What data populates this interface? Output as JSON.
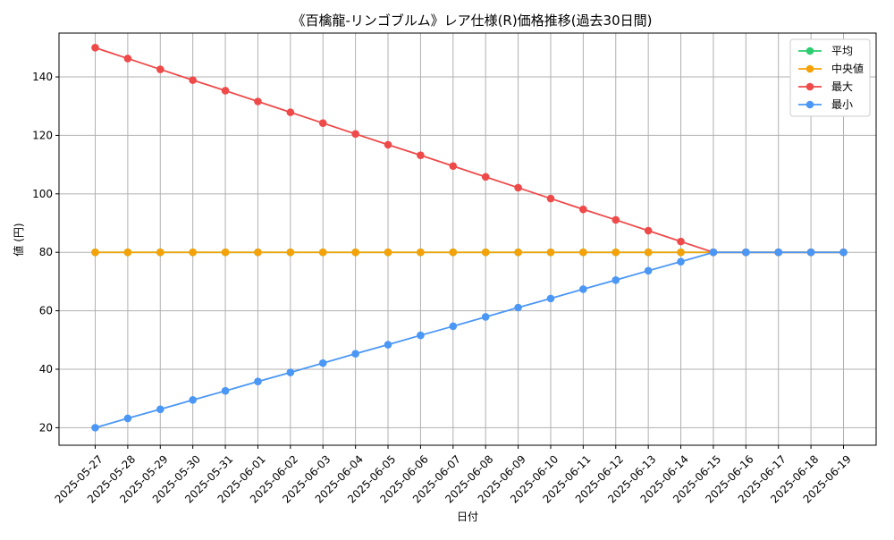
{
  "chart_data": {
    "type": "line",
    "title": "《百檎龍-リンゴブルム》レア仕様(R)価格推移(過去30日間)",
    "xlabel": "日付",
    "ylabel": "値 (円)",
    "x": [
      "2025-05-27",
      "2025-05-28",
      "2025-05-29",
      "2025-05-30",
      "2025-05-31",
      "2025-06-01",
      "2025-06-02",
      "2025-06-03",
      "2025-06-04",
      "2025-06-05",
      "2025-06-06",
      "2025-06-07",
      "2025-06-08",
      "2025-06-09",
      "2025-06-10",
      "2025-06-11",
      "2025-06-12",
      "2025-06-13",
      "2025-06-14",
      "2025-06-15",
      "2025-06-16",
      "2025-06-17",
      "2025-06-18",
      "2025-06-19"
    ],
    "ylim": [
      14,
      155
    ],
    "yticks": [
      20,
      40,
      60,
      80,
      100,
      120,
      140
    ],
    "grid": true,
    "legend_position": "top-right",
    "series": [
      {
        "name": "平均",
        "color": "#2ecc71",
        "values": [
          80,
          80,
          80,
          80,
          80,
          80,
          80,
          80,
          80,
          80,
          80,
          80,
          80,
          80,
          80,
          80,
          80,
          80,
          80,
          80,
          80,
          80,
          80,
          80
        ]
      },
      {
        "name": "中央値",
        "color": "#f5a20a",
        "values": [
          80,
          80,
          80,
          80,
          80,
          80,
          80,
          80,
          80,
          80,
          80,
          80,
          80,
          80,
          80,
          80,
          80,
          80,
          80,
          80,
          80,
          80,
          80,
          80
        ]
      },
      {
        "name": "最大",
        "color": "#ef4a4a",
        "values": [
          150,
          146.3,
          142.6,
          138.9,
          135.3,
          131.6,
          127.9,
          124.2,
          120.5,
          116.8,
          113.2,
          109.5,
          105.8,
          102.1,
          98.4,
          94.7,
          91.1,
          87.4,
          83.7,
          80,
          80,
          80,
          80,
          80
        ]
      },
      {
        "name": "最小",
        "color": "#4b97f5",
        "values": [
          20,
          23.2,
          26.3,
          29.5,
          32.6,
          35.8,
          38.9,
          42.1,
          45.3,
          48.4,
          51.6,
          54.7,
          57.9,
          61.1,
          64.2,
          67.4,
          70.5,
          73.7,
          76.8,
          80,
          80,
          80,
          80,
          80
        ]
      }
    ]
  }
}
